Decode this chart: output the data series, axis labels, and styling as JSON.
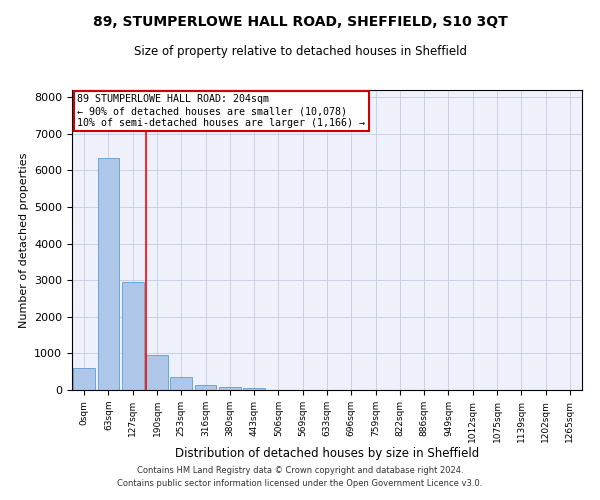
{
  "title": "89, STUMPERLOWE HALL ROAD, SHEFFIELD, S10 3QT",
  "subtitle": "Size of property relative to detached houses in Sheffield",
  "xlabel": "Distribution of detached houses by size in Sheffield",
  "ylabel": "Number of detached properties",
  "bar_color": "#aec6e8",
  "bar_edge_color": "#5a9fd4",
  "categories": [
    "0sqm",
    "63sqm",
    "127sqm",
    "190sqm",
    "253sqm",
    "316sqm",
    "380sqm",
    "443sqm",
    "506sqm",
    "569sqm",
    "633sqm",
    "696sqm",
    "759sqm",
    "822sqm",
    "886sqm",
    "949sqm",
    "1012sqm",
    "1075sqm",
    "1139sqm",
    "1202sqm",
    "1265sqm"
  ],
  "values": [
    600,
    6350,
    2950,
    970,
    360,
    150,
    80,
    50,
    0,
    0,
    0,
    0,
    0,
    0,
    0,
    0,
    0,
    0,
    0,
    0,
    0
  ],
  "red_line_x": 3,
  "annotation_text": "89 STUMPERLOWE HALL ROAD: 204sqm\n← 90% of detached houses are smaller (10,078)\n10% of semi-detached houses are larger (1,166) →",
  "annotation_box_color": "#cc0000",
  "ylim": [
    0,
    8200
  ],
  "yticks": [
    0,
    1000,
    2000,
    3000,
    4000,
    5000,
    6000,
    7000,
    8000
  ],
  "grid_color": "#c8d0e8",
  "background_color": "#eef0fa",
  "footer_line1": "Contains HM Land Registry data © Crown copyright and database right 2024.",
  "footer_line2": "Contains public sector information licensed under the Open Government Licence v3.0."
}
